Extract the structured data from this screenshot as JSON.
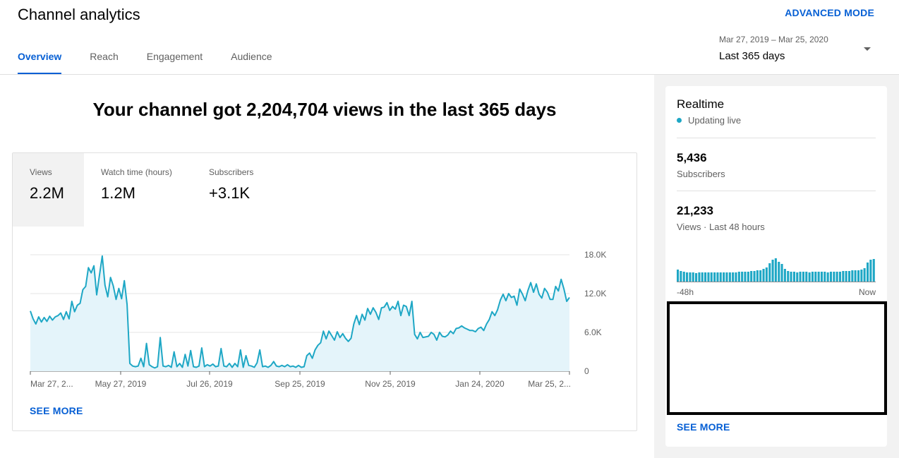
{
  "header": {
    "title": "Channel analytics",
    "advanced_mode": "ADVANCED MODE",
    "tabs": [
      {
        "label": "Overview"
      },
      {
        "label": "Reach"
      },
      {
        "label": "Engagement"
      },
      {
        "label": "Audience"
      }
    ],
    "date_range": "Mar 27, 2019 – Mar 25, 2020",
    "date_label": "Last 365 days"
  },
  "headline": "Your channel got 2,204,704 views in the last 365 days",
  "metrics": [
    {
      "label": "Views",
      "value": "2.2M"
    },
    {
      "label": "Watch time (hours)",
      "value": "1.2M"
    },
    {
      "label": "Subscribers",
      "value": "+3.1K"
    }
  ],
  "see_more": "SEE MORE",
  "colors": {
    "accent": "#065fd4",
    "series": "#1ea7c5",
    "fill": "#e4f4fa"
  },
  "chart_data": {
    "type": "area",
    "x_tick_labels": [
      "Mar 27, 2...",
      "May 27, 2019",
      "Jul 26, 2019",
      "Sep 25, 2019",
      "Nov 25, 2019",
      "Jan 24, 2020",
      "Mar 25, 2..."
    ],
    "y_tick_labels": [
      "0",
      "6.0K",
      "12.0K",
      "18.0K"
    ],
    "ylim": [
      0,
      18000
    ],
    "grid": true,
    "series": [
      {
        "values": [
          9300,
          8100,
          7300,
          8400,
          7600,
          8300,
          7700,
          8500,
          7900,
          8400,
          8600,
          9000,
          8000,
          9200,
          8100,
          10800,
          9200,
          10200,
          10500,
          12600,
          13100,
          16000,
          15200,
          16300,
          11800,
          14800,
          17800,
          13300,
          11500,
          14500,
          13200,
          11100,
          12800,
          11200,
          14000,
          10300,
          1200,
          800,
          700,
          800,
          2000,
          700,
          4300,
          1000,
          700,
          500,
          700,
          5200,
          800,
          700,
          900,
          600,
          3000,
          700,
          1200,
          600,
          2600,
          800,
          3200,
          700,
          600,
          800,
          3600,
          700,
          1000,
          800,
          1100,
          700,
          800,
          3500,
          800,
          700,
          1200,
          600,
          1200,
          700,
          3300,
          600,
          2400,
          900,
          800,
          600,
          1300,
          3300,
          700,
          800,
          600,
          900,
          1500,
          800,
          700,
          900,
          700,
          1000,
          700,
          800,
          600,
          900,
          600,
          700,
          2400,
          2800,
          2000,
          3300,
          4000,
          4400,
          6200,
          5000,
          6200,
          5500,
          4800,
          6100,
          5200,
          5800,
          5100,
          4600,
          5100,
          7300,
          8600,
          7200,
          8800,
          7900,
          9700,
          8800,
          9800,
          9100,
          8000,
          9800,
          9900,
          10600,
          9400,
          10000,
          9600,
          10800,
          8600,
          10200,
          10000,
          8600,
          10800,
          5700,
          5000,
          6000,
          5200,
          5300,
          5400,
          6000,
          5700,
          4800,
          6000,
          5400,
          5300,
          5600,
          6200,
          5800,
          6600,
          6700,
          7000,
          6700,
          6500,
          6300,
          6300,
          6100,
          6600,
          6800,
          6300,
          7300,
          8000,
          9200,
          8600,
          9500,
          11000,
          11900,
          10900,
          12000,
          11400,
          11600,
          10200,
          12700,
          11900,
          10900,
          12500,
          13700,
          12200,
          13500,
          11900,
          11300,
          12800,
          12200,
          11100,
          11100,
          13100,
          12400,
          14200,
          12700,
          10800,
          11400
        ]
      }
    ]
  },
  "realtime": {
    "title": "Realtime",
    "live_text": "Updating live",
    "subscribers_value": "5,436",
    "subscribers_label": "Subscribers",
    "views_value": "21,233",
    "views_label": "Views · Last 48 hours",
    "axis_start": "-48h",
    "axis_end": "Now",
    "see_more": "SEE MORE",
    "bars": [
      18,
      16,
      15,
      14,
      14,
      14,
      13,
      14,
      14,
      14,
      14,
      14,
      14,
      14,
      14,
      14,
      14,
      14,
      14,
      14,
      15,
      15,
      15,
      15,
      16,
      16,
      17,
      17,
      19,
      21,
      27,
      32,
      34,
      29,
      26,
      19,
      16,
      15,
      15,
      14,
      15,
      15,
      15,
      14,
      15,
      15,
      15,
      15,
      15,
      14,
      15,
      15,
      15,
      15,
      16,
      16,
      16,
      17,
      17,
      17,
      18,
      20,
      28,
      32,
      33
    ]
  }
}
